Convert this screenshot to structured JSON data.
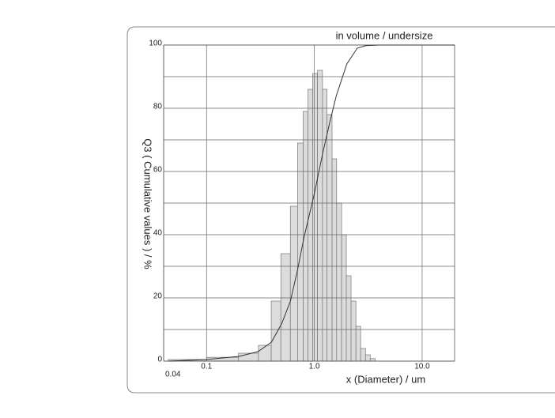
{
  "chart_data": {
    "type": "histogram",
    "annotation": "in volume / undersize",
    "xlabel": "x (Diameter) / um",
    "ylabel": "Q3 ( Cumulative values ) / %",
    "xscale": "log",
    "grid": true,
    "color": "#dcdcdc",
    "bins": [
      0.0441,
      0.1,
      0.198,
      0.303,
      0.398,
      0.489,
      0.599,
      0.699,
      0.788,
      0.872,
      0.966,
      1.07,
      1.19,
      1.31,
      1.46,
      1.61,
      1.79,
      1.98,
      2.19,
      2.43,
      2.69,
      2.98,
      3.3,
      3.66
    ],
    "values": [
      0.5,
      1.2,
      2.5,
      5,
      19,
      34,
      49,
      69,
      79,
      86,
      91,
      92,
      86,
      78,
      64,
      50,
      40,
      27,
      19,
      11,
      4,
      2,
      0.8
    ],
    "cumulative": {
      "type": "line",
      "color": "#333333",
      "x": [
        0.045,
        0.1,
        0.2,
        0.3,
        0.4,
        0.5,
        0.6,
        0.7,
        0.8,
        1.0,
        1.2,
        1.4,
        1.6,
        2.0,
        2.5,
        3.0,
        4.0,
        10,
        20
      ],
      "values": [
        0,
        0.5,
        1.5,
        3,
        6,
        12,
        19,
        29,
        39,
        53,
        66,
        76,
        84,
        94,
        99,
        99.8,
        100,
        100,
        100
      ]
    },
    "xlim": [
      0.04,
      20
    ],
    "ylim": [
      0,
      100
    ],
    "xticks": [
      0.04,
      0.1,
      {
        "value": 1,
        "label": "1.0"
      },
      {
        "value": 10,
        "label": "10.0"
      }
    ],
    "yticks": [
      0,
      20,
      40,
      60,
      80,
      100
    ],
    "minor_yticks": [
      10,
      30,
      50,
      70,
      90
    ]
  }
}
